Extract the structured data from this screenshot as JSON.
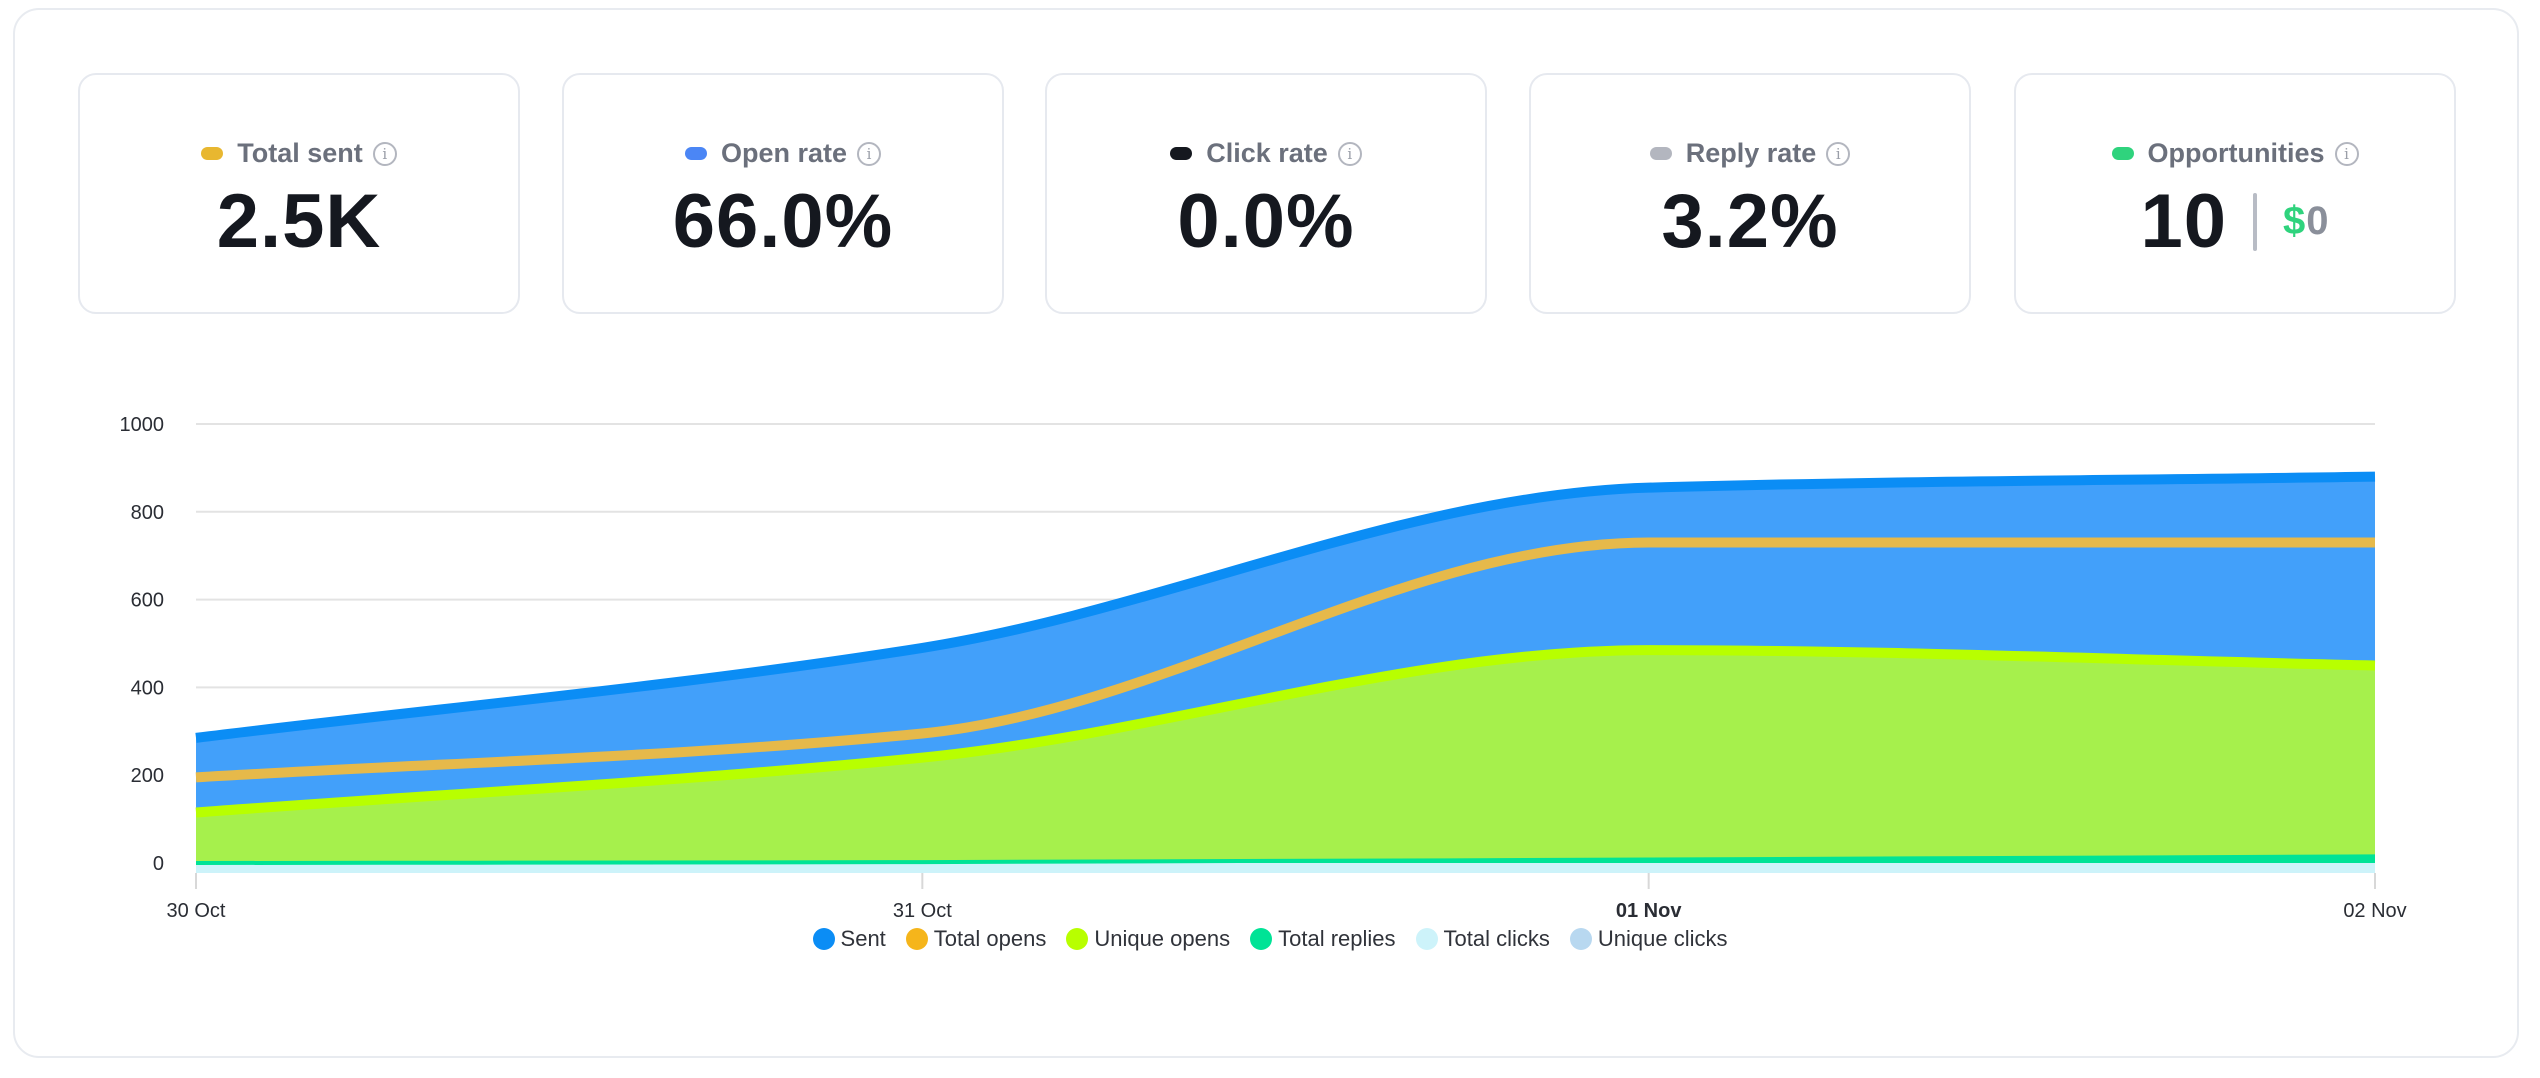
{
  "stats": [
    {
      "label": "Total sent",
      "value": "2.5K",
      "color": "#e8b730"
    },
    {
      "label": "Open rate",
      "value": "66.0%",
      "color": "#4b86f5"
    },
    {
      "label": "Click rate",
      "value": "0.0%",
      "color": "#15181f"
    },
    {
      "label": "Reply rate",
      "value": "3.2%",
      "color": "#b3b6bf"
    },
    {
      "label": "Opportunities",
      "value": "10",
      "currency": "$",
      "amount": "0",
      "color": "#2fd37d"
    }
  ],
  "chart_data": {
    "type": "area",
    "categories": [
      "30 Oct",
      "31 Oct",
      "01 Nov",
      "02 Nov"
    ],
    "ylim": [
      0,
      1000
    ],
    "yticks": [
      0,
      200,
      400,
      600,
      800,
      1000
    ],
    "grid": true,
    "legend_position": "bottom",
    "series": [
      {
        "name": "Sent",
        "values": [
          285,
          490,
          855,
          880
        ],
        "color": "#0b8df5"
      },
      {
        "name": "Total opens",
        "values": [
          195,
          295,
          730,
          730
        ],
        "color": "#f5b51b"
      },
      {
        "name": "Unique opens",
        "values": [
          115,
          240,
          485,
          450
        ],
        "color": "#b8ff00"
      },
      {
        "name": "Total replies",
        "values": [
          0,
          2,
          8,
          15
        ],
        "color": "#00e396"
      },
      {
        "name": "Total clicks",
        "values": [
          0,
          0,
          0,
          0
        ],
        "color": "#cdf3fa"
      },
      {
        "name": "Unique clicks",
        "values": [
          0,
          0,
          0,
          0
        ],
        "color": "#b8d8f0"
      }
    ]
  }
}
